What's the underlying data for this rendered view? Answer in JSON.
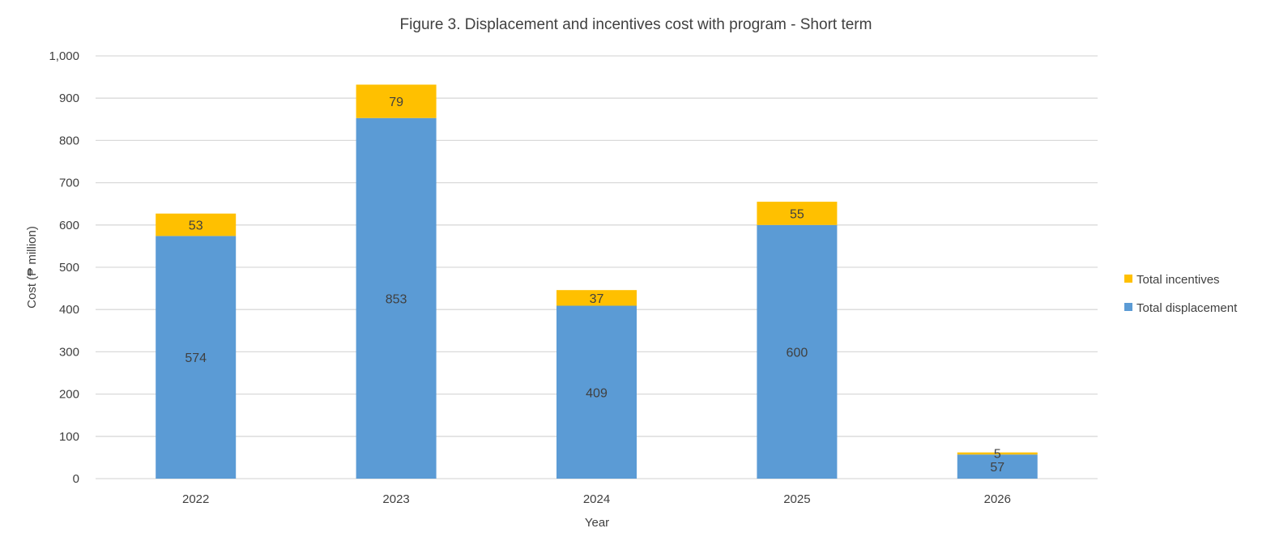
{
  "chart_data": {
    "type": "bar",
    "stacked": true,
    "title": "Figure 3. Displacement and incentives cost with program - Short term",
    "xlabel": "Year",
    "ylabel": "Cost (₱ million)",
    "categories": [
      "2022",
      "2023",
      "2024",
      "2025",
      "2026"
    ],
    "ylim": [
      0,
      1000
    ],
    "yticks": [
      0,
      100,
      200,
      300,
      400,
      500,
      600,
      700,
      800,
      900,
      1000
    ],
    "ytick_labels": [
      "0",
      "100",
      "200",
      "300",
      "400",
      "500",
      "600",
      "700",
      "800",
      "900",
      "1,000"
    ],
    "grid": true,
    "legend_position": "right",
    "series": [
      {
        "name": "Total displacement",
        "color": "#5b9bd5",
        "values": [
          574,
          853,
          409,
          600,
          57
        ]
      },
      {
        "name": "Total incentives",
        "color": "#ffc000",
        "values": [
          53,
          79,
          37,
          55,
          5
        ]
      }
    ]
  }
}
